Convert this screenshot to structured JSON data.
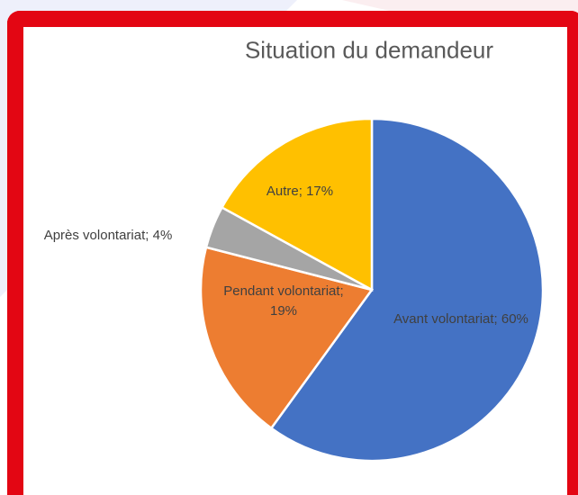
{
  "chart_data": {
    "type": "pie",
    "title": "Situation du demandeur",
    "values": [
      60,
      19,
      4,
      17
    ],
    "value_labels": [
      "Avant volontariat; 60%",
      "Pendant volontariat; 19%",
      "Après volontariat; 4%",
      "Autre; 17%"
    ],
    "colors": [
      "#4472c4",
      "#ed7d31",
      "#a5a5a5",
      "#ffc000"
    ]
  }
}
